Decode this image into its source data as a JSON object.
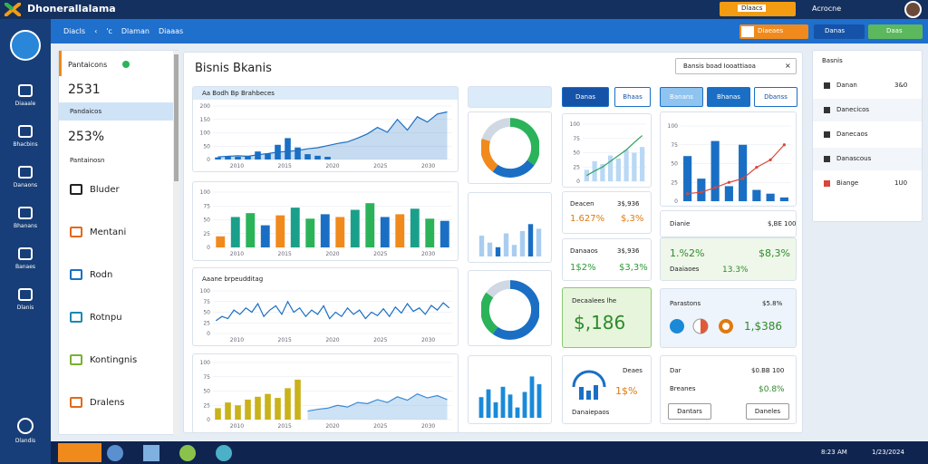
{
  "header": {
    "app_title": "Dhonerallalama",
    "alert_button": "Dlaacs",
    "user_name": "Acrocne"
  },
  "nav": {
    "links": [
      "Diacls",
      "‹",
      "'c",
      "Dlaman",
      "Diaaas"
    ],
    "search_value": "Diaeaes",
    "primary_button": "Danas",
    "success_button": "Daas"
  },
  "sidebar": {
    "items": [
      "Diaaale",
      "Bhacbins",
      "Danaons",
      "Bhanans",
      "Banaes",
      "Dlanis"
    ],
    "bottom_item": "Dlandis"
  },
  "side_panel": {
    "heading": "Pantaicons",
    "stat_1": "2531",
    "stat_1_label": "Pandaicos",
    "stat_2": "253%",
    "stat_2_label": "Pantainosn",
    "items": [
      "Bluder",
      "Mentani",
      "Rodn",
      "Rotnpu",
      "Kontingnis",
      "Dralens"
    ]
  },
  "main": {
    "title": "Bisnis Bkanis",
    "search_placeholder": "Bansis boad Iooattiaoa"
  },
  "charts": [
    {
      "type": "combo",
      "title": "Aa Bodh Bp Brahbeces",
      "ylim": [
        0,
        200
      ],
      "yticks": [
        0,
        50,
        100,
        150,
        200
      ],
      "xlabels": [
        "2010",
        "2015",
        "2020",
        "2025",
        "2030"
      ],
      "bar_color": "#1a6fc4",
      "values": [
        8,
        12,
        10,
        14,
        30,
        22,
        55,
        80,
        45,
        20,
        14,
        10,
        null,
        null,
        null,
        null,
        null,
        null,
        null,
        null,
        null,
        null,
        null,
        null
      ],
      "line_color": "#1a6fc4",
      "area": true,
      "line_values": [
        10,
        12,
        14,
        12,
        18,
        22,
        28,
        30,
        34,
        40,
        44,
        52,
        60,
        66,
        80,
        96,
        120,
        102,
        150,
        110,
        160,
        140,
        170,
        178
      ]
    },
    {
      "type": "bar",
      "ylim": [
        0,
        100
      ],
      "yticks": [
        0,
        25,
        50,
        75,
        100
      ],
      "xlabels": [
        "2010",
        "2015",
        "2020",
        "2025",
        "2030"
      ],
      "colors": [
        "#f08a1c",
        "#1aa08a",
        "#2bb35a",
        "#1a6fc4"
      ],
      "values": [
        20,
        55,
        62,
        40,
        58,
        72,
        52,
        60,
        55,
        68,
        80,
        55,
        60,
        70,
        52,
        48
      ]
    },
    {
      "type": "line",
      "title": "Aaane brpeudditag",
      "ylim": [
        0,
        100
      ],
      "yticks": [
        0,
        25,
        50,
        75,
        100
      ],
      "xlabels": [
        "2010",
        "2015",
        "2020",
        "2025",
        "2030"
      ],
      "color": "#1a6fc4",
      "values": [
        30,
        40,
        35,
        55,
        45,
        60,
        50,
        70,
        40,
        55,
        65,
        45,
        75,
        50,
        60,
        40,
        55,
        45,
        65,
        35,
        50,
        40,
        60,
        45,
        55,
        35,
        50,
        42,
        58,
        40,
        62,
        48,
        70,
        52,
        60,
        45,
        66,
        55,
        72,
        60
      ]
    },
    {
      "type": "combo",
      "ylim": [
        0,
        100
      ],
      "yticks": [
        0,
        25,
        50,
        75,
        100
      ],
      "xlabels": [
        "2010",
        "2015",
        "2020",
        "2025",
        "2030"
      ],
      "bar_color": "#c9b21a",
      "values": [
        20,
        30,
        25,
        35,
        40,
        45,
        38,
        55,
        70,
        null,
        null,
        null,
        null,
        null,
        null,
        null,
        null,
        null,
        null,
        null,
        null,
        null,
        null,
        null
      ],
      "line_color": "#3a8ad8",
      "area": true,
      "line_values": [
        null,
        null,
        null,
        null,
        null,
        null,
        null,
        null,
        null,
        15,
        18,
        20,
        25,
        22,
        30,
        28,
        35,
        30,
        40,
        34,
        45,
        38,
        42,
        35
      ]
    },
    {
      "type": "donut",
      "values": [
        35,
        25,
        20,
        20
      ],
      "colors": [
        "#2bb35a",
        "#1a6fc4",
        "#f08a1c",
        "#cfd8e3"
      ]
    },
    {
      "type": "bar",
      "ylim": [
        0,
        100
      ],
      "colors": [
        "#a9cdf0",
        "#a9cdf0",
        "#1a6fc4",
        "#a9cdf0",
        "#a9cdf0",
        "#a9cdf0",
        "#1a6fc4",
        "#a9cdf0"
      ],
      "values": [
        45,
        30,
        20,
        50,
        25,
        55,
        70,
        60
      ]
    },
    {
      "type": "donut",
      "values": [
        60,
        25,
        15
      ],
      "colors": [
        "#1a6fc4",
        "#2bb35a",
        "#cfd8e3"
      ]
    },
    {
      "type": "bar",
      "ylim": [
        0,
        100
      ],
      "color": "#1a8ad8",
      "values": [
        40,
        55,
        30,
        60,
        45,
        20,
        50,
        80,
        65
      ]
    },
    {
      "type": "combo",
      "ylim": [
        0,
        100
      ],
      "yticks": [
        0,
        25,
        50,
        75,
        100
      ],
      "bar_color": "#b9d8f5",
      "values": [
        20,
        35,
        30,
        45,
        40,
        55,
        50,
        60
      ],
      "line_color": "#2ea05a",
      "line_values": [
        10,
        18,
        25,
        35,
        45,
        55,
        68,
        80
      ]
    },
    {
      "type": "combo",
      "ylim": [
        0,
        100
      ],
      "yticks": [
        0,
        25,
        50,
        75,
        100
      ],
      "bar_color": "#1a6fc4",
      "values": [
        60,
        30,
        80,
        20,
        75,
        15,
        10,
        5
      ],
      "line_color": "#d9473a",
      "line_values": [
        10,
        12,
        18,
        25,
        30,
        45,
        55,
        75
      ],
      "markers": true
    }
  ],
  "tabs": {
    "col3": [
      "Danas",
      "Bhaas"
    ],
    "col4": [
      "Banans",
      "Bhanas",
      "Dbanss"
    ]
  },
  "cards": {
    "c3_stat1": {
      "label": "Deacen",
      "value": "3$,936",
      "a": "1.627%",
      "b": "$,3%"
    },
    "c3_stat2": {
      "label": "Danaaos",
      "value": "3$,936",
      "a": "1$2%",
      "b": "$3,3%"
    },
    "c3_green": {
      "label": "Decaalees lhe",
      "value": "$,186"
    },
    "c3_gauge": {
      "label": "Deaes",
      "value": "1$%",
      "footer": "Danaiepaos"
    },
    "c4_stat1": {
      "label": "Dianie",
      "value": "$,BE 100"
    },
    "c4_stat2": {
      "a": "1.%2%",
      "b": "$8,3%",
      "label": "Daaiaoes",
      "c": "13.3%"
    },
    "c4_card3": {
      "label": "Parastons",
      "value": "$5.8%",
      "big": "1,$386"
    },
    "c4_card4": {
      "label": "Dar",
      "value": "$0.BB 100",
      "label2": "Breanes",
      "value2": "$0.8%",
      "button1": "Dantars",
      "button2": "Daneles"
    }
  },
  "right_panel": {
    "heading": "Basnis",
    "items": [
      {
        "label": "Danan",
        "value": "3&0"
      },
      {
        "label": "Danecicos"
      },
      {
        "label": "Danecaos"
      },
      {
        "label": "Danascous"
      },
      {
        "label": "Biange",
        "value": "1U0"
      }
    ]
  },
  "taskbar": {
    "time": "8:23 AM",
    "date": "1/23/2024"
  }
}
